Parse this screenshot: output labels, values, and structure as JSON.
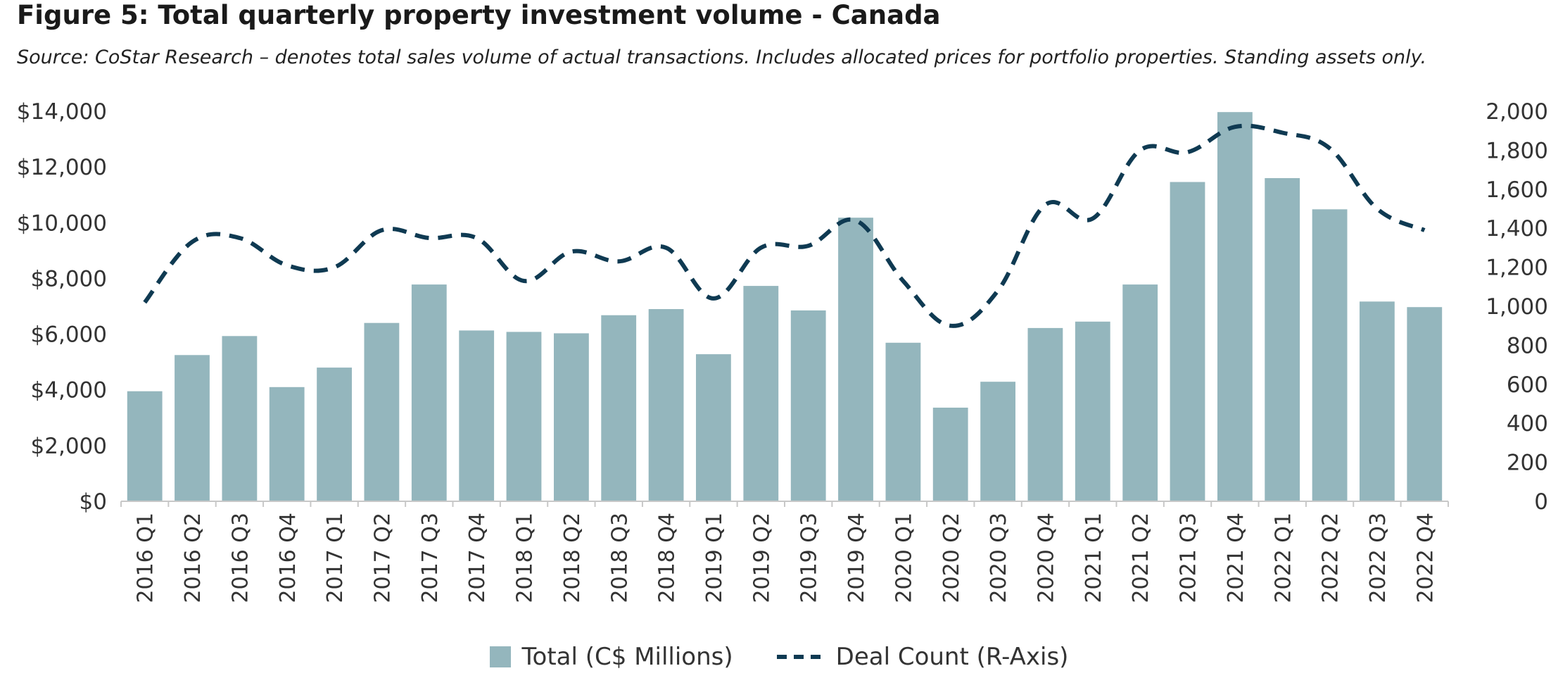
{
  "title": "Figure 5: Total quarterly property investment volume - Canada",
  "source": "Source: CoStar Research – denotes total sales volume of actual transactions. Includes allocated prices for portfolio properties. Standing assets only.",
  "colors": {
    "bar": "#94b6bd",
    "line": "#0f3a52",
    "axis": "#c8c8c8"
  },
  "chart_data": {
    "type": "bar",
    "categories": [
      "2016 Q1",
      "2016 Q2",
      "2016 Q3",
      "2016 Q4",
      "2017 Q1",
      "2017 Q2",
      "2017 Q3",
      "2017 Q4",
      "2018 Q1",
      "2018 Q2",
      "2018 Q3",
      "2018 Q4",
      "2019 Q1",
      "2019 Q2",
      "2019 Q3",
      "2019 Q4",
      "2020 Q1",
      "2020 Q2",
      "2020 Q3",
      "2020 Q4",
      "2021 Q1",
      "2021 Q2",
      "2021 Q3",
      "2021 Q4",
      "2022 Q1",
      "2022 Q2",
      "2022 Q3",
      "2022 Q4"
    ],
    "series": [
      {
        "name": "Total (C$ Millions)",
        "type": "bar",
        "axis": "left",
        "values": [
          3950,
          5250,
          5930,
          4100,
          4800,
          6400,
          7780,
          6130,
          6080,
          6030,
          6680,
          6900,
          5280,
          7730,
          6850,
          10180,
          5690,
          3360,
          4290,
          6220,
          6450,
          7780,
          11460,
          13970,
          11600,
          10480,
          7170,
          6970
        ]
      },
      {
        "name": "Deal Count (R-Axis)",
        "type": "line",
        "style": "dashed",
        "axis": "right",
        "values": [
          1020,
          1330,
          1350,
          1210,
          1200,
          1390,
          1350,
          1350,
          1130,
          1280,
          1230,
          1300,
          1040,
          1300,
          1310,
          1440,
          1130,
          900,
          1080,
          1520,
          1450,
          1800,
          1790,
          1920,
          1890,
          1810,
          1500,
          1390
        ]
      }
    ],
    "y_left": {
      "ylim": [
        0,
        14000
      ],
      "ticks": [
        "$0",
        "$2,000",
        "$4,000",
        "$6,000",
        "$8,000",
        "$10,000",
        "$12,000",
        "$14,000"
      ]
    },
    "y_right": {
      "ylim": [
        0,
        2000
      ],
      "ticks": [
        "0",
        "200",
        "400",
        "600",
        "800",
        "1,000",
        "1,200",
        "1,400",
        "1,600",
        "1,800",
        "2,000"
      ]
    },
    "grid": false,
    "legend_position": "bottom-center"
  }
}
